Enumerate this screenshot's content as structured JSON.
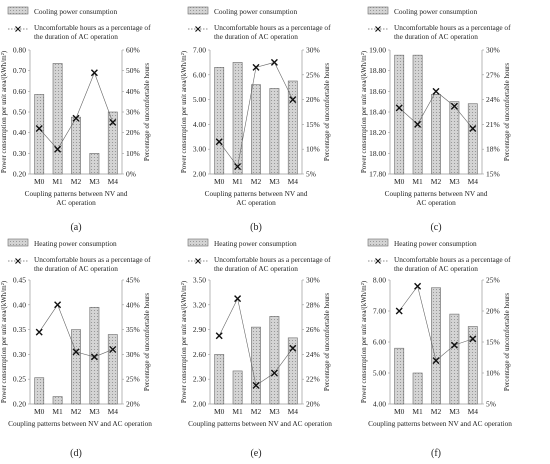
{
  "figure": {
    "xlabel": "Coupling patterns between NV and AC operation",
    "ylabel_left": "Power consumption per unit area/(kWh/m²)",
    "ylabel_right": "Percentage of uncomfortable hours",
    "legend_line": "Uncomfortable hours as a percentage of the duration of AC operation",
    "colors": {
      "bar_fill": "#d0d0d0",
      "bar_stroke": "#6a6a6a",
      "line": "#666666",
      "marker": "#111111"
    }
  },
  "chart_data": [
    {
      "type": "bar",
      "panel_label": "(a)",
      "bar_series_name": "Cooling power consumption",
      "line_series_name": "Uncomfortable hours as a percentage of the duration of AC operation",
      "categories": [
        "M0",
        "M1",
        "M2",
        "M3",
        "M4"
      ],
      "values": [
        0.585,
        0.735,
        0.475,
        0.3,
        0.5
      ],
      "ylim": [
        0.2,
        0.8
      ],
      "yticks": [
        "0.20",
        "0.30",
        "0.40",
        "0.50",
        "0.60",
        "0.70",
        "0.80"
      ],
      "line_values": [
        22,
        12,
        27,
        49,
        25
      ],
      "y2lim": [
        0,
        60
      ],
      "y2ticks": [
        "0%",
        "10%",
        "20%",
        "30%",
        "40%",
        "50%",
        "60%"
      ]
    },
    {
      "type": "bar",
      "panel_label": "(b)",
      "bar_series_name": "Cooling power consumption",
      "line_series_name": "Uncomfortable hours as a percentage of the duration of AC operation",
      "categories": [
        "M0",
        "M1",
        "M2",
        "M3",
        "M4"
      ],
      "values": [
        6.3,
        6.5,
        5.6,
        5.45,
        5.75
      ],
      "ylim": [
        2.0,
        7.0
      ],
      "yticks": [
        "2.00",
        "3.00",
        "4.00",
        "5.00",
        "6.00",
        "7.00"
      ],
      "line_values": [
        11.5,
        6.5,
        26.5,
        27.5,
        20
      ],
      "y2lim": [
        5,
        30
      ],
      "y2ticks": [
        "5%",
        "10%",
        "15%",
        "20%",
        "25%",
        "30%"
      ]
    },
    {
      "type": "bar",
      "panel_label": "(c)",
      "bar_series_name": "Cooling power consumption",
      "line_series_name": "Uncomfortable hours as a percentage of the duration of AC operation",
      "categories": [
        "M0",
        "M1",
        "M2",
        "M3",
        "M4"
      ],
      "values": [
        18.95,
        18.95,
        18.57,
        18.5,
        18.48
      ],
      "ylim": [
        17.8,
        19.0
      ],
      "yticks": [
        "17.80",
        "18.00",
        "18.20",
        "18.40",
        "18.60",
        "18.80",
        "19.00"
      ],
      "line_values": [
        23,
        21,
        25,
        23.2,
        20.5
      ],
      "y2lim": [
        15,
        30
      ],
      "y2ticks": [
        "15%",
        "18%",
        "21%",
        "24%",
        "27%",
        "30%"
      ]
    },
    {
      "type": "bar",
      "panel_label": "(d)",
      "bar_series_name": "Heating power consumption",
      "line_series_name": "Uncomfortable hours as a percentage of the duration of AC operation",
      "categories": [
        "M0",
        "M1",
        "M2",
        "M3",
        "M4"
      ],
      "values": [
        0.253,
        0.215,
        0.35,
        0.395,
        0.34
      ],
      "ylim": [
        0.2,
        0.45
      ],
      "yticks": [
        "0.20",
        "0.25",
        "0.30",
        "0.35",
        "0.40",
        "0.45"
      ],
      "line_values": [
        34.5,
        40,
        30.5,
        29.5,
        31
      ],
      "y2lim": [
        20,
        45
      ],
      "y2ticks": [
        "20%",
        "25%",
        "30%",
        "35%",
        "40%",
        "45%"
      ]
    },
    {
      "type": "bar",
      "panel_label": "(e)",
      "bar_series_name": "Heating power consumption",
      "line_series_name": "Uncomfortable hours as a percentage of the duration of AC operation",
      "categories": [
        "M0",
        "M1",
        "M2",
        "M3",
        "M4"
      ],
      "values": [
        2.6,
        2.4,
        2.93,
        3.06,
        2.8
      ],
      "ylim": [
        2.0,
        3.5
      ],
      "yticks": [
        "2.00",
        "2.30",
        "2.60",
        "2.90",
        "3.20",
        "3.50"
      ],
      "line_values": [
        25.5,
        28.5,
        21.5,
        22.5,
        24.5
      ],
      "y2lim": [
        20,
        30
      ],
      "y2ticks": [
        "20%",
        "22%",
        "24%",
        "26%",
        "28%",
        "30%"
      ]
    },
    {
      "type": "bar",
      "panel_label": "(f)",
      "bar_series_name": "Heating power consumption",
      "line_series_name": "Uncomfortable hours as a percentage of the duration of AC operation",
      "categories": [
        "M0",
        "M1",
        "M2",
        "M3",
        "M4"
      ],
      "values": [
        5.8,
        5.0,
        7.75,
        6.9,
        6.5
      ],
      "ylim": [
        4.0,
        8.0
      ],
      "yticks": [
        "4.00",
        "5.00",
        "6.00",
        "7.00",
        "8.00"
      ],
      "line_values": [
        20,
        24,
        12,
        14.5,
        15.5
      ],
      "y2lim": [
        5,
        25
      ],
      "y2ticks": [
        "5%",
        "10%",
        "15%",
        "20%",
        "25%"
      ]
    }
  ]
}
